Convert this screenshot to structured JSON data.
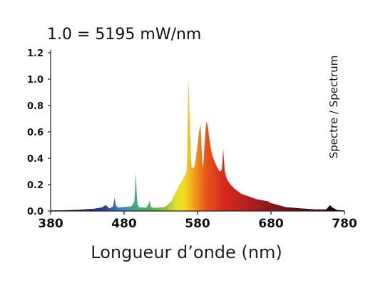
{
  "chart_data": {
    "type": "area",
    "title": "1.0 = 5195 mW/nm",
    "xlabel": "Longueur d’onde (nm)",
    "ylabel": "",
    "side_label": "Spectre / Spectrum",
    "xlim": [
      380,
      780
    ],
    "ylim": [
      0,
      1.2
    ],
    "xticks": [
      380,
      480,
      580,
      680,
      780
    ],
    "yticks": [
      0.0,
      0.2,
      0.4,
      0.6,
      0.8,
      1.0,
      1.2
    ],
    "ytick_labels": [
      "0.0",
      "0.2",
      "0.4",
      "0.6",
      "0.8",
      "1.0",
      "1.2"
    ],
    "grid": false,
    "fill": "wavelength-colored",
    "series": [
      {
        "x": [
          380,
          400,
          420,
          440,
          450,
          455,
          460,
          465,
          467,
          469,
          472,
          478,
          490,
          494,
          496,
          497,
          498,
          500,
          510,
          513,
          515,
          516,
          518,
          525,
          535,
          540,
          545,
          548,
          552,
          555,
          560,
          565,
          566,
          567,
          568,
          569,
          570,
          571,
          572,
          574,
          576,
          578,
          580,
          582,
          584,
          585,
          586,
          587,
          588,
          590,
          592,
          594,
          596,
          598,
          600,
          603,
          606,
          610,
          613,
          614,
          615,
          616,
          617,
          620,
          625,
          630,
          640,
          650,
          660,
          665,
          670,
          675,
          680,
          690,
          700,
          720,
          740,
          755,
          758,
          760,
          762,
          764,
          770,
          780
        ],
        "y": [
          0.005,
          0.006,
          0.01,
          0.018,
          0.028,
          0.045,
          0.02,
          0.035,
          0.1,
          0.04,
          0.025,
          0.03,
          0.035,
          0.07,
          0.29,
          0.15,
          0.06,
          0.03,
          0.025,
          0.05,
          0.08,
          0.04,
          0.025,
          0.025,
          0.03,
          0.05,
          0.08,
          0.12,
          0.16,
          0.2,
          0.24,
          0.3,
          0.45,
          0.85,
          1.0,
          0.72,
          0.55,
          0.4,
          0.33,
          0.32,
          0.34,
          0.42,
          0.5,
          0.6,
          0.65,
          0.55,
          0.4,
          0.33,
          0.37,
          0.55,
          0.68,
          0.64,
          0.55,
          0.48,
          0.42,
          0.38,
          0.34,
          0.3,
          0.31,
          0.38,
          0.47,
          0.38,
          0.3,
          0.24,
          0.2,
          0.17,
          0.13,
          0.11,
          0.09,
          0.085,
          0.08,
          0.075,
          0.06,
          0.045,
          0.03,
          0.02,
          0.012,
          0.012,
          0.03,
          0.045,
          0.035,
          0.025,
          0.008,
          0.005
        ]
      }
    ]
  }
}
